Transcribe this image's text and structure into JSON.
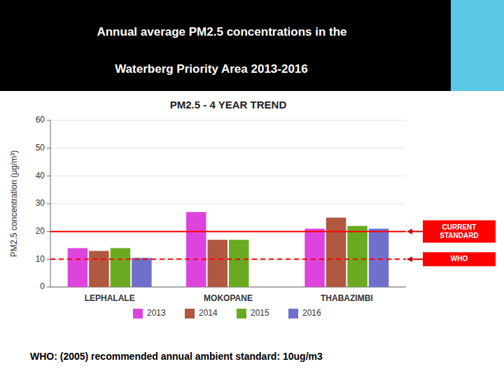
{
  "chart_data": {
    "type": "bar",
    "title": "PM2.5 - 4 YEAR TREND",
    "header": [
      "Annual average PM2.5 concentrations in the",
      "Waterberg Priority Area 2013-2016"
    ],
    "footer": "WHO: (2005) recommended annual ambient standard: 10ug/m3",
    "ylabel": "PM2.5 concentration (μg/m³)",
    "categories": [
      "LEPHALALE",
      "MOKOPANE",
      "THABAZIMBI"
    ],
    "series": [
      {
        "name": "2013",
        "color": "#dd44dd",
        "values": [
          14,
          27,
          21
        ]
      },
      {
        "name": "2014",
        "color": "#b05840",
        "values": [
          13,
          17,
          25
        ]
      },
      {
        "name": "2015",
        "color": "#6aaa20",
        "values": [
          14,
          17,
          22
        ]
      },
      {
        "name": "2016",
        "color": "#7070cc",
        "values": [
          10.5,
          0,
          21
        ]
      }
    ],
    "reference_lines": [
      {
        "value": 10,
        "label": "WHO",
        "color": "red",
        "line_style": "dashed"
      },
      {
        "value": 20,
        "label": "CURRENT\nSTANDARD",
        "color": "red",
        "line_style": "solid"
      }
    ],
    "ylim": [
      0,
      60
    ],
    "yticks": [
      0,
      10,
      20,
      30,
      40,
      50,
      60
    ],
    "grid": true,
    "legend": "bottom"
  }
}
